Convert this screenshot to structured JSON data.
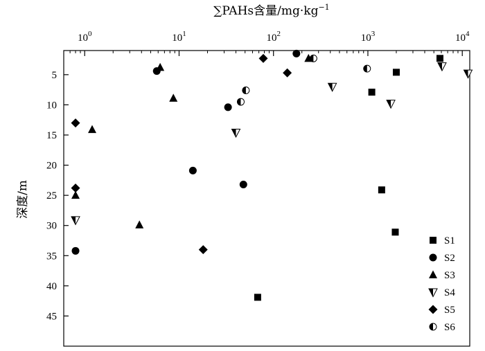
{
  "chart_data": {
    "type": "scatter",
    "title": "",
    "xlabel": "∑PAHs含量/mg·kg",
    "xlabel_superscript": "−1",
    "ylabel": "深度/m",
    "x_scale": "log",
    "x_axis_position": "top",
    "y_inverted": true,
    "xlim": [
      0.6,
      12000
    ],
    "ylim": [
      1,
      50
    ],
    "x_ticks": [
      {
        "value": 1,
        "base": "10",
        "exp": "0"
      },
      {
        "value": 10,
        "base": "10",
        "exp": "1"
      },
      {
        "value": 100,
        "base": "10",
        "exp": "2"
      },
      {
        "value": 1000,
        "base": "10",
        "exp": "3"
      },
      {
        "value": 10000,
        "base": "10",
        "exp": "4"
      }
    ],
    "y_ticks": [
      "5",
      "10",
      "15",
      "20",
      "25",
      "30",
      "35",
      "40",
      "45"
    ],
    "legend_position": "bottom-right",
    "grid": false,
    "series": [
      {
        "name": "S1",
        "marker": "square",
        "points": [
          [
            5800,
            2.3
          ],
          [
            2000,
            4.6
          ],
          [
            1100,
            7.9
          ],
          [
            1400,
            24.1
          ],
          [
            1950,
            31.1
          ],
          [
            68,
            41.9
          ]
        ]
      },
      {
        "name": "S2",
        "marker": "circle",
        "points": [
          [
            175,
            1.5
          ],
          [
            5.8,
            4.4
          ],
          [
            33,
            10.4
          ],
          [
            14,
            20.9
          ],
          [
            48,
            23.2
          ],
          [
            0.8,
            34.2
          ]
        ]
      },
      {
        "name": "S3",
        "marker": "triangle-up",
        "points": [
          [
            235,
            2.3
          ],
          [
            6.3,
            3.8
          ],
          [
            8.7,
            8.9
          ],
          [
            1.2,
            14.1
          ],
          [
            0.8,
            25.0
          ],
          [
            3.8,
            29.9
          ]
        ]
      },
      {
        "name": "S4",
        "marker": "triangle-down",
        "points": [
          [
            6100,
            3.6
          ],
          [
            11500,
            4.8
          ],
          [
            420,
            7.0
          ],
          [
            1750,
            9.8
          ],
          [
            40,
            14.6
          ],
          [
            0.8,
            29.1
          ]
        ]
      },
      {
        "name": "S5",
        "marker": "diamond",
        "points": [
          [
            78,
            2.3
          ],
          [
            140,
            4.7
          ],
          [
            0.8,
            13.0
          ],
          [
            0.8,
            23.8
          ],
          [
            18,
            34.0
          ]
        ]
      },
      {
        "name": "S6",
        "marker": "half-circle",
        "points": [
          [
            265,
            2.3
          ],
          [
            980,
            4.0
          ],
          [
            51,
            7.6
          ],
          [
            45,
            9.5
          ]
        ]
      }
    ]
  }
}
